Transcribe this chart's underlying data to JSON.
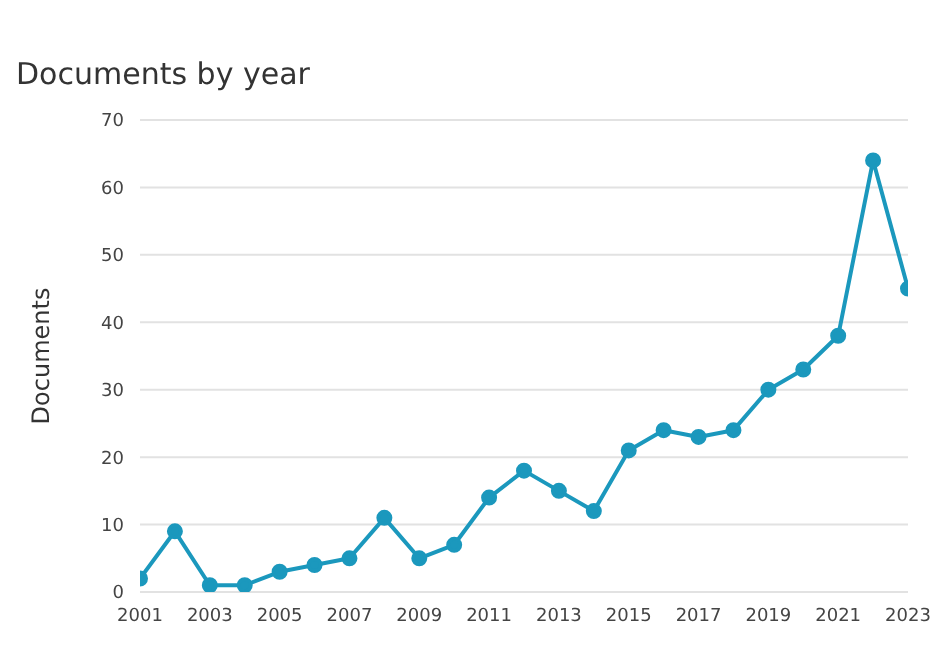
{
  "chart_data": {
    "type": "line",
    "title": "Documents by year",
    "ylabel": "Documents",
    "x": [
      2001,
      2002,
      2003,
      2004,
      2005,
      2006,
      2007,
      2008,
      2009,
      2010,
      2011,
      2012,
      2013,
      2014,
      2015,
      2016,
      2017,
      2018,
      2019,
      2020,
      2021,
      2022,
      2023
    ],
    "series": [
      {
        "color": "#1b98bd",
        "values": [
          2,
          9,
          1,
          1,
          3,
          4,
          5,
          11,
          5,
          7,
          14,
          18,
          15,
          12,
          21,
          24,
          23,
          24,
          30,
          33,
          38,
          64,
          45
        ]
      }
    ],
    "xlim": [
      2001,
      2023
    ],
    "xticks": [
      2001,
      2003,
      2005,
      2007,
      2009,
      2011,
      2013,
      2015,
      2017,
      2019,
      2021,
      2023
    ],
    "ylim": [
      0,
      70
    ],
    "yticks": [
      0,
      10,
      20,
      30,
      40,
      50,
      60,
      70
    ],
    "grid": "y",
    "marker": "circle",
    "line_style": "solid"
  }
}
